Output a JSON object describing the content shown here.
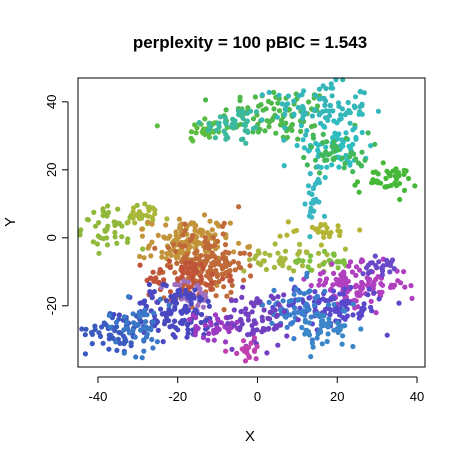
{
  "chart_data": {
    "type": "scatter",
    "title": "perplexity = 100 pBIC = 1.543",
    "xlabel": "X",
    "ylabel": "Y",
    "xlim": [
      -45,
      42
    ],
    "ylim": [
      -38,
      47
    ],
    "xticks": [
      -40,
      -20,
      0,
      20,
      40
    ],
    "xtick_labels": [
      "-40",
      "-20",
      "0",
      "20",
      "40"
    ],
    "yticks": [
      -20,
      0,
      20,
      40
    ],
    "ytick_labels": [
      "-20",
      "0",
      "20",
      "40"
    ],
    "grid": false,
    "legend": "none",
    "marker": "filled-circle",
    "clusters": [
      {
        "color": "#4fb84a",
        "center": [
          5,
          36
        ],
        "spread": [
          7,
          4
        ],
        "count": 90
      },
      {
        "color": "#5cbd3f",
        "center": [
          -13,
          32
        ],
        "spread": [
          3,
          2
        ],
        "count": 30
      },
      {
        "color": "#3ab8a0",
        "center": [
          -6,
          33
        ],
        "spread": [
          4,
          3
        ],
        "count": 45
      },
      {
        "color": "#35b7b9",
        "center": [
          16,
          38
        ],
        "spread": [
          6,
          4
        ],
        "count": 90
      },
      {
        "color": "#2fbcc0",
        "center": [
          20,
          27
        ],
        "spread": [
          4,
          4
        ],
        "count": 60
      },
      {
        "color": "#42b85a",
        "center": [
          20,
          25
        ],
        "spread": [
          4,
          3
        ],
        "count": 45
      },
      {
        "color": "#46b838",
        "center": [
          32,
          17
        ],
        "spread": [
          4,
          2
        ],
        "count": 40
      },
      {
        "color": "#38b6c2",
        "center": [
          14,
          12
        ],
        "spread": [
          1,
          5
        ],
        "count": 25
      },
      {
        "color": "#90b93c",
        "center": [
          -36,
          3
        ],
        "spread": [
          4,
          3
        ],
        "count": 50
      },
      {
        "color": "#aab83a",
        "center": [
          -28,
          6
        ],
        "spread": [
          3,
          2
        ],
        "count": 25
      },
      {
        "color": "#b5b535",
        "center": [
          16,
          2
        ],
        "spread": [
          5,
          1.5
        ],
        "count": 25
      },
      {
        "color": "#a8b83e",
        "center": [
          7,
          -6
        ],
        "spread": [
          5,
          2
        ],
        "count": 45
      },
      {
        "color": "#7ebf40",
        "center": [
          16,
          -7
        ],
        "spread": [
          4,
          1.5
        ],
        "count": 25
      },
      {
        "color": "#c3933a",
        "center": [
          -17,
          -2
        ],
        "spread": [
          5,
          4
        ],
        "count": 140
      },
      {
        "color": "#c06a3a",
        "center": [
          -13,
          -8
        ],
        "spread": [
          5,
          5
        ],
        "count": 160
      },
      {
        "color": "#c0523a",
        "center": [
          -18,
          -12
        ],
        "spread": [
          5,
          3
        ],
        "count": 70
      },
      {
        "color": "#a070c0",
        "center": [
          -17,
          -18
        ],
        "spread": [
          3,
          3
        ],
        "count": 40
      },
      {
        "color": "#4a48c0",
        "center": [
          -20,
          -22
        ],
        "spread": [
          6,
          4
        ],
        "count": 120
      },
      {
        "color": "#3a5ac0",
        "center": [
          -35,
          -27
        ],
        "spread": [
          4,
          3
        ],
        "count": 55
      },
      {
        "color": "#3a78c8",
        "center": [
          -30,
          -26
        ],
        "spread": [
          4,
          4
        ],
        "count": 45
      },
      {
        "color": "#9c3ac4",
        "center": [
          -10,
          -26
        ],
        "spread": [
          3,
          2
        ],
        "count": 40
      },
      {
        "color": "#b040c0",
        "center": [
          25,
          -14
        ],
        "spread": [
          6,
          3
        ],
        "count": 120
      },
      {
        "color": "#5a48cc",
        "center": [
          18,
          -20
        ],
        "spread": [
          7,
          3
        ],
        "count": 100
      },
      {
        "color": "#3a7ecc",
        "center": [
          10,
          -21
        ],
        "spread": [
          4,
          4
        ],
        "count": 70
      },
      {
        "color": "#3a86c8",
        "center": [
          18,
          -27
        ],
        "spread": [
          4,
          3
        ],
        "count": 45
      },
      {
        "color": "#7040c0",
        "center": [
          0,
          -24
        ],
        "spread": [
          4,
          4
        ],
        "count": 70
      },
      {
        "color": "#6a48c8",
        "center": [
          30,
          -8
        ],
        "spread": [
          2,
          1.5
        ],
        "count": 25
      },
      {
        "color": "#c040b0",
        "center": [
          -2,
          -33
        ],
        "spread": [
          2,
          1.5
        ],
        "count": 20
      }
    ]
  }
}
